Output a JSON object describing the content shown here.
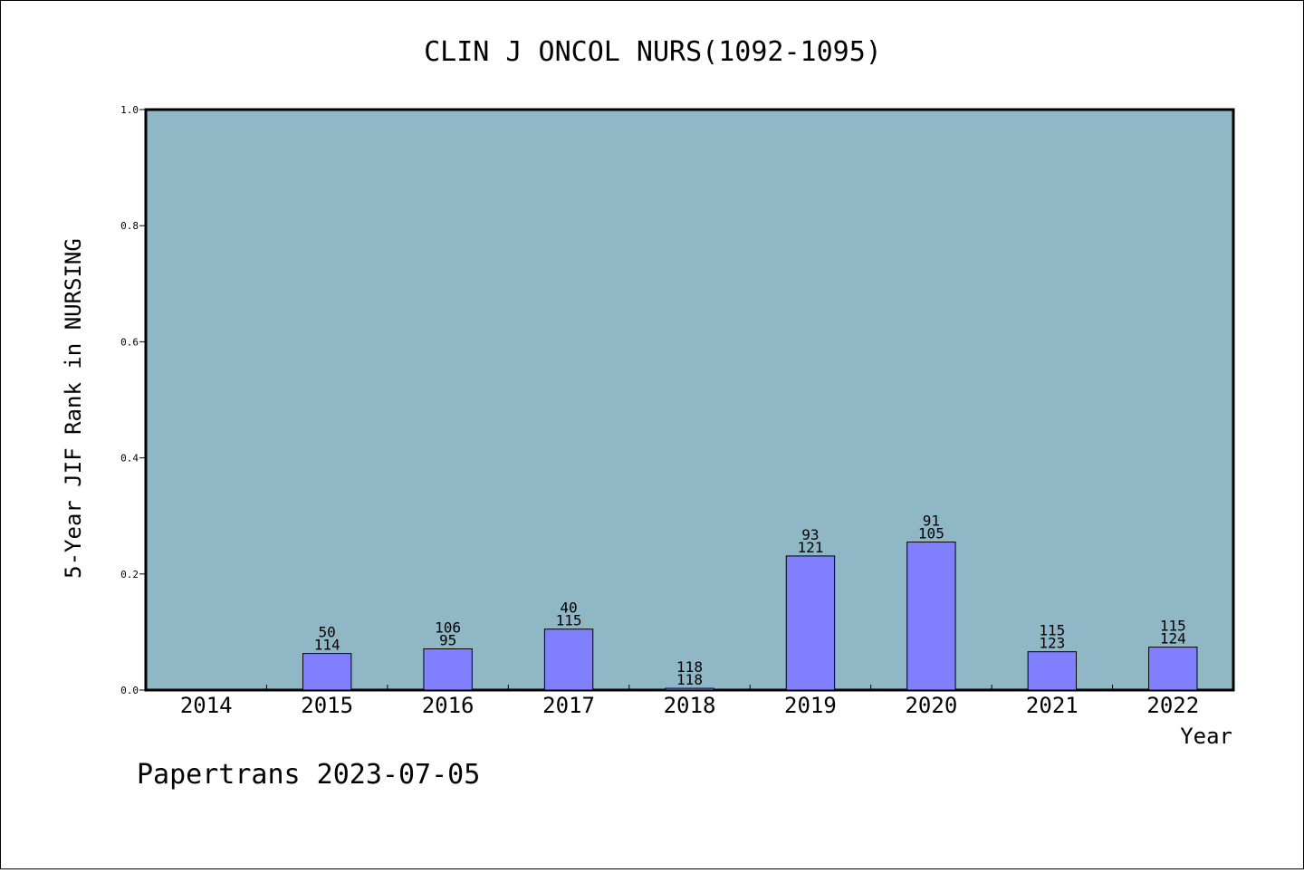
{
  "chart_data": {
    "type": "bar",
    "title": "CLIN J ONCOL NURS(1092-1095)",
    "xlabel": "Year",
    "ylabel": "5-Year JIF Rank in NURSING",
    "ylim": [
      0,
      1.0
    ],
    "yticks": [
      "0.0",
      "0.2",
      "0.4",
      "0.6",
      "0.8",
      "1.0"
    ],
    "grid": false,
    "categories": [
      "2014",
      "2015",
      "2016",
      "2017",
      "2018",
      "2019",
      "2020",
      "2021",
      "2022"
    ],
    "values": [
      null,
      0.063,
      0.071,
      0.105,
      0.003,
      0.231,
      0.255,
      0.066,
      0.074
    ],
    "labels_top": [
      "",
      "50",
      "106",
      "40",
      "118",
      "93",
      "91",
      "115",
      "115"
    ],
    "labels_bottom": [
      "",
      "114",
      "95",
      "115",
      "118",
      "121",
      "105",
      "123",
      "124"
    ]
  },
  "footer": "Papertrans 2023-07-05",
  "colors": {
    "plot_background": "#8fb7c5",
    "bar_fill": "#8080ff",
    "bar_stroke": "#000000"
  }
}
